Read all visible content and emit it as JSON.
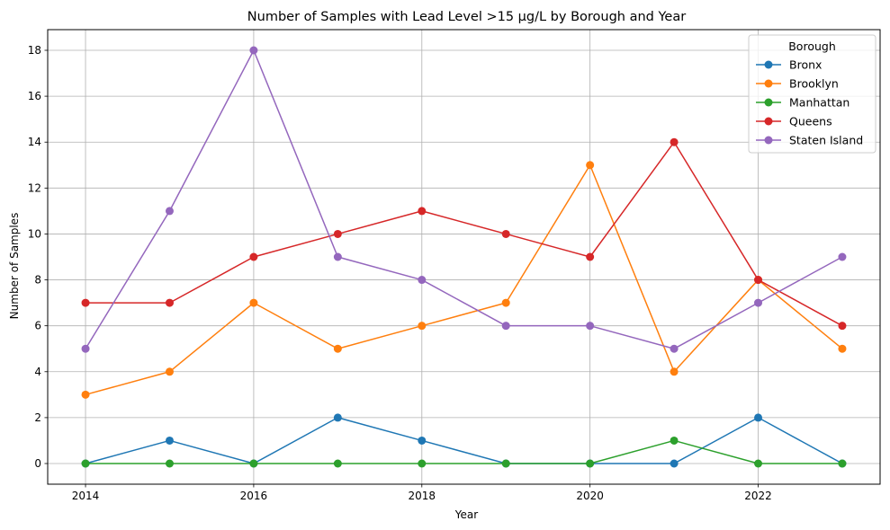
{
  "chart_data": {
    "type": "line",
    "title": "Number of Samples with Lead Level >15 µg/L by Borough and Year",
    "xlabel": "Year",
    "ylabel": "Number of Samples",
    "x": [
      2014,
      2015,
      2016,
      2017,
      2018,
      2019,
      2020,
      2021,
      2022,
      2023
    ],
    "xticks": [
      2014,
      2016,
      2018,
      2020,
      2022
    ],
    "xlim": [
      2013.55,
      2023.45
    ],
    "ylim": [
      -0.9,
      18.9
    ],
    "yticks": [
      0,
      2,
      4,
      6,
      8,
      10,
      12,
      14,
      16,
      18
    ],
    "grid": true,
    "legend": {
      "title": "Borough",
      "placement": "top-right"
    },
    "series": [
      {
        "name": "Bronx",
        "color": "#1f77b4",
        "values": [
          0,
          1,
          0,
          2,
          1,
          0,
          0,
          0,
          2,
          0
        ]
      },
      {
        "name": "Brooklyn",
        "color": "#ff7f0e",
        "values": [
          3,
          4,
          7,
          5,
          6,
          7,
          13,
          4,
          8,
          5
        ]
      },
      {
        "name": "Manhattan",
        "color": "#2ca02c",
        "values": [
          0,
          0,
          0,
          0,
          0,
          0,
          0,
          1,
          0,
          0
        ]
      },
      {
        "name": "Queens",
        "color": "#d62728",
        "values": [
          7,
          7,
          9,
          10,
          11,
          10,
          9,
          14,
          8,
          6
        ]
      },
      {
        "name": "Staten Island",
        "color": "#9467bd",
        "values": [
          5,
          11,
          18,
          9,
          8,
          6,
          6,
          5,
          7,
          9
        ]
      }
    ]
  }
}
